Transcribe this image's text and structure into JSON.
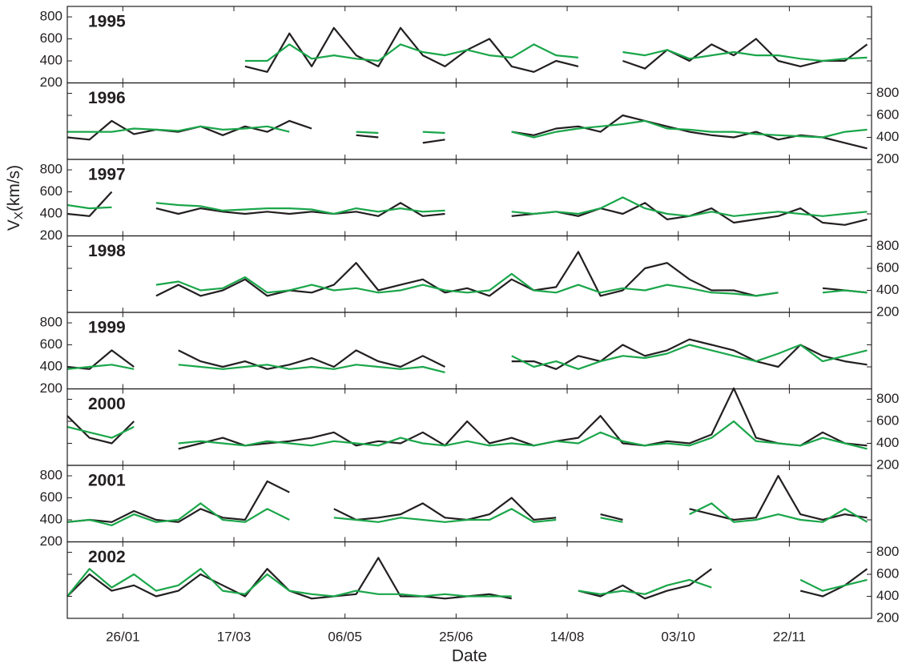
{
  "chart_data": [
    {
      "type": "line",
      "title": "1995",
      "y_axis_side": "left",
      "xlim": [
        1,
        363
      ],
      "ylim": [
        200,
        895
      ],
      "yticks": [
        200,
        400,
        600,
        800
      ],
      "x": [
        1,
        11,
        21,
        31,
        41,
        51,
        61,
        71,
        81,
        91,
        101,
        111,
        121,
        131,
        141,
        151,
        161,
        171,
        181,
        191,
        201,
        211,
        221,
        231,
        241,
        251,
        261,
        271,
        281,
        291,
        301,
        311,
        321,
        331,
        341,
        351,
        361
      ],
      "series": [
        {
          "color": "#231f20",
          "values": [
            null,
            null,
            null,
            null,
            null,
            null,
            null,
            null,
            350,
            300,
            650,
            350,
            700,
            450,
            350,
            700,
            450,
            350,
            500,
            600,
            350,
            300,
            400,
            350,
            null,
            400,
            330,
            500,
            400,
            550,
            450,
            600,
            400,
            350,
            400,
            400,
            550
          ]
        },
        {
          "color": "#1aa64a",
          "values": [
            null,
            null,
            null,
            null,
            null,
            null,
            null,
            null,
            400,
            400,
            550,
            420,
            450,
            420,
            400,
            550,
            480,
            450,
            500,
            450,
            430,
            550,
            450,
            430,
            null,
            480,
            450,
            500,
            420,
            450,
            480,
            450,
            450,
            420,
            400,
            420,
            430
          ]
        }
      ]
    },
    {
      "type": "line",
      "title": "1996",
      "y_axis_side": "right",
      "xlim": [
        1,
        363
      ],
      "ylim": [
        200,
        895
      ],
      "yticks": [
        200,
        400,
        600,
        800
      ],
      "x": [
        1,
        11,
        21,
        31,
        41,
        51,
        61,
        71,
        81,
        91,
        101,
        111,
        121,
        131,
        141,
        151,
        161,
        171,
        181,
        191,
        201,
        211,
        221,
        231,
        241,
        251,
        261,
        271,
        281,
        291,
        301,
        311,
        321,
        331,
        341,
        351,
        361
      ],
      "series": [
        {
          "color": "#231f20",
          "values": [
            400,
            380,
            550,
            430,
            470,
            450,
            500,
            420,
            500,
            450,
            550,
            480,
            null,
            420,
            400,
            null,
            350,
            380,
            null,
            null,
            450,
            420,
            480,
            500,
            450,
            600,
            550,
            500,
            450,
            420,
            400,
            450,
            380,
            420,
            400,
            350,
            300
          ]
        },
        {
          "color": "#1aa64a",
          "values": [
            450,
            450,
            450,
            480,
            470,
            460,
            500,
            470,
            480,
            500,
            450,
            null,
            null,
            450,
            440,
            null,
            450,
            440,
            null,
            null,
            450,
            400,
            450,
            480,
            500,
            520,
            550,
            480,
            470,
            450,
            450,
            430,
            420,
            410,
            400,
            450,
            470
          ]
        }
      ]
    },
    {
      "type": "line",
      "title": "1997",
      "y_axis_side": "left",
      "xlim": [
        1,
        363
      ],
      "ylim": [
        200,
        895
      ],
      "yticks": [
        200,
        400,
        600,
        800
      ],
      "ylabel": "V",
      "ylabel_sub": "X",
      "ylabel_unit": "(km/s)",
      "x": [
        1,
        11,
        21,
        31,
        41,
        51,
        61,
        71,
        81,
        91,
        101,
        111,
        121,
        131,
        141,
        151,
        161,
        171,
        181,
        191,
        201,
        211,
        221,
        231,
        241,
        251,
        261,
        271,
        281,
        291,
        301,
        311,
        321,
        331,
        341,
        351,
        361
      ],
      "series": [
        {
          "color": "#231f20",
          "values": [
            400,
            380,
            600,
            null,
            450,
            400,
            450,
            420,
            400,
            420,
            400,
            420,
            400,
            420,
            380,
            500,
            380,
            400,
            null,
            null,
            380,
            400,
            420,
            380,
            450,
            400,
            500,
            350,
            380,
            450,
            320,
            350,
            380,
            450,
            320,
            300,
            350
          ]
        },
        {
          "color": "#1aa64a",
          "values": [
            480,
            450,
            460,
            null,
            500,
            480,
            470,
            430,
            440,
            450,
            450,
            440,
            400,
            450,
            420,
            450,
            420,
            430,
            null,
            null,
            420,
            400,
            420,
            400,
            450,
            550,
            450,
            400,
            380,
            420,
            380,
            400,
            420,
            400,
            380,
            400,
            420
          ]
        }
      ]
    },
    {
      "type": "line",
      "title": "1998",
      "y_axis_side": "right",
      "xlim": [
        1,
        363
      ],
      "ylim": [
        200,
        895
      ],
      "yticks": [
        200,
        400,
        600,
        800
      ],
      "x": [
        1,
        11,
        21,
        31,
        41,
        51,
        61,
        71,
        81,
        91,
        101,
        111,
        121,
        131,
        141,
        151,
        161,
        171,
        181,
        191,
        201,
        211,
        221,
        231,
        241,
        251,
        261,
        271,
        281,
        291,
        301,
        311,
        321,
        331,
        341,
        351,
        361
      ],
      "series": [
        {
          "color": "#231f20",
          "values": [
            null,
            null,
            null,
            null,
            350,
            450,
            350,
            400,
            500,
            350,
            400,
            380,
            450,
            650,
            400,
            450,
            500,
            380,
            420,
            350,
            500,
            400,
            430,
            750,
            350,
            400,
            600,
            650,
            500,
            400,
            400,
            350,
            380,
            null,
            420,
            400,
            380
          ]
        },
        {
          "color": "#1aa64a",
          "values": [
            null,
            null,
            null,
            null,
            450,
            480,
            400,
            420,
            520,
            380,
            400,
            450,
            400,
            420,
            380,
            400,
            450,
            400,
            380,
            400,
            550,
            400,
            380,
            450,
            380,
            420,
            400,
            450,
            420,
            380,
            370,
            350,
            380,
            null,
            380,
            400,
            380
          ]
        }
      ]
    },
    {
      "type": "line",
      "title": "1999",
      "y_axis_side": "left",
      "xlim": [
        1,
        363
      ],
      "ylim": [
        200,
        895
      ],
      "yticks": [
        200,
        400,
        600,
        800
      ],
      "x": [
        1,
        11,
        21,
        31,
        41,
        51,
        61,
        71,
        81,
        91,
        101,
        111,
        121,
        131,
        141,
        151,
        161,
        171,
        181,
        191,
        201,
        211,
        221,
        231,
        241,
        251,
        261,
        271,
        281,
        291,
        301,
        311,
        321,
        331,
        341,
        351,
        361
      ],
      "series": [
        {
          "color": "#231f20",
          "values": [
            400,
            380,
            550,
            400,
            null,
            550,
            450,
            400,
            450,
            380,
            420,
            480,
            400,
            550,
            450,
            400,
            500,
            400,
            null,
            null,
            450,
            450,
            380,
            500,
            450,
            600,
            500,
            550,
            650,
            600,
            550,
            450,
            400,
            600,
            500,
            450,
            420
          ]
        },
        {
          "color": "#1aa64a",
          "values": [
            380,
            400,
            420,
            380,
            null,
            420,
            400,
            380,
            400,
            420,
            380,
            400,
            380,
            420,
            400,
            380,
            400,
            350,
            null,
            null,
            500,
            400,
            450,
            380,
            450,
            500,
            480,
            520,
            600,
            550,
            500,
            450,
            520,
            600,
            450,
            500,
            550
          ]
        }
      ]
    },
    {
      "type": "line",
      "title": "2000",
      "y_axis_side": "right",
      "xlim": [
        1,
        363
      ],
      "ylim": [
        200,
        895
      ],
      "yticks": [
        200,
        400,
        600,
        800
      ],
      "x": [
        1,
        11,
        21,
        31,
        41,
        51,
        61,
        71,
        81,
        91,
        101,
        111,
        121,
        131,
        141,
        151,
        161,
        171,
        181,
        191,
        201,
        211,
        221,
        231,
        241,
        251,
        261,
        271,
        281,
        291,
        301,
        311,
        321,
        331,
        341,
        351,
        361
      ],
      "series": [
        {
          "color": "#231f20",
          "values": [
            650,
            450,
            400,
            600,
            null,
            350,
            400,
            450,
            380,
            400,
            420,
            450,
            500,
            380,
            420,
            400,
            500,
            380,
            600,
            400,
            450,
            380,
            420,
            450,
            650,
            400,
            380,
            420,
            400,
            480,
            900,
            450,
            400,
            380,
            500,
            400,
            380
          ]
        },
        {
          "color": "#1aa64a",
          "values": [
            550,
            500,
            450,
            550,
            null,
            400,
            420,
            400,
            380,
            420,
            400,
            380,
            420,
            400,
            380,
            450,
            400,
            380,
            420,
            380,
            400,
            380,
            420,
            400,
            500,
            420,
            380,
            400,
            380,
            450,
            600,
            420,
            400,
            380,
            450,
            400,
            350
          ]
        }
      ]
    },
    {
      "type": "line",
      "title": "2001",
      "y_axis_side": "left",
      "xlim": [
        1,
        363
      ],
      "ylim": [
        200,
        895
      ],
      "yticks": [
        200,
        400,
        600,
        800
      ],
      "x": [
        1,
        11,
        21,
        31,
        41,
        51,
        61,
        71,
        81,
        91,
        101,
        111,
        121,
        131,
        141,
        151,
        161,
        171,
        181,
        191,
        201,
        211,
        221,
        231,
        241,
        251,
        261,
        271,
        281,
        291,
        301,
        311,
        321,
        331,
        341,
        351,
        361
      ],
      "series": [
        {
          "color": "#231f20",
          "values": [
            380,
            400,
            380,
            480,
            400,
            380,
            500,
            420,
            400,
            750,
            650,
            null,
            500,
            400,
            420,
            450,
            550,
            420,
            400,
            450,
            600,
            400,
            420,
            null,
            450,
            400,
            null,
            null,
            500,
            450,
            400,
            420,
            800,
            450,
            400,
            450,
            420
          ]
        },
        {
          "color": "#1aa64a",
          "values": [
            380,
            400,
            350,
            450,
            380,
            400,
            550,
            400,
            380,
            500,
            400,
            null,
            420,
            400,
            380,
            420,
            400,
            380,
            400,
            400,
            500,
            380,
            400,
            null,
            420,
            380,
            null,
            null,
            450,
            550,
            380,
            400,
            450,
            400,
            380,
            500,
            380
          ]
        }
      ]
    },
    {
      "type": "line",
      "title": "2002",
      "y_axis_side": "right",
      "xlim": [
        1,
        363
      ],
      "ylim": [
        200,
        895
      ],
      "yticks": [
        200,
        400,
        600,
        800
      ],
      "xlabel": "Date",
      "xticks": [
        {
          "value": 26,
          "label": "26/01"
        },
        {
          "value": 76,
          "label": "17/03"
        },
        {
          "value": 126,
          "label": "06/05"
        },
        {
          "value": 176,
          "label": "25/06"
        },
        {
          "value": 226,
          "label": "14/08"
        },
        {
          "value": 276,
          "label": "03/10"
        },
        {
          "value": 326,
          "label": "22/11"
        }
      ],
      "x": [
        1,
        11,
        21,
        31,
        41,
        51,
        61,
        71,
        81,
        91,
        101,
        111,
        121,
        131,
        141,
        151,
        161,
        171,
        181,
        191,
        201,
        211,
        221,
        231,
        241,
        251,
        261,
        271,
        281,
        291,
        301,
        311,
        321,
        331,
        341,
        351,
        361
      ],
      "series": [
        {
          "color": "#231f20",
          "values": [
            400,
            600,
            450,
            500,
            400,
            450,
            600,
            500,
            400,
            650,
            450,
            380,
            400,
            420,
            750,
            400,
            400,
            380,
            400,
            420,
            380,
            null,
            null,
            450,
            400,
            500,
            380,
            450,
            500,
            650,
            null,
            null,
            null,
            450,
            400,
            500,
            650
          ]
        },
        {
          "color": "#1aa64a",
          "values": [
            400,
            650,
            480,
            600,
            450,
            500,
            650,
            450,
            420,
            600,
            450,
            420,
            400,
            450,
            420,
            420,
            400,
            420,
            400,
            400,
            400,
            null,
            null,
            450,
            420,
            450,
            420,
            500,
            550,
            480,
            null,
            null,
            null,
            550,
            450,
            500,
            550
          ]
        }
      ]
    }
  ]
}
